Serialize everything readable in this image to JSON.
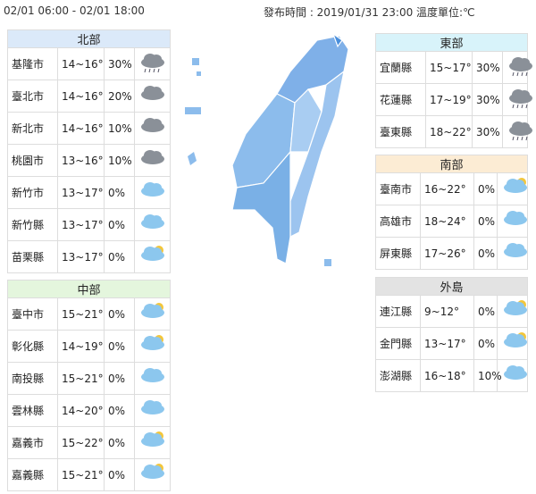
{
  "period": "02/01 06:00 - 02/01 18:00",
  "issued": "發布時間 : 2019/01/31 23:00 溫度單位:℃",
  "regions": [
    {
      "name": "北部",
      "color": "#dbe9f9",
      "rows": [
        {
          "city": "基隆市",
          "temp": "14~16°",
          "rain": "30%",
          "icon": "rain-icon"
        },
        {
          "city": "臺北市",
          "temp": "14~16°",
          "rain": "20%",
          "icon": "dark-cloud-icon"
        },
        {
          "city": "新北市",
          "temp": "14~16°",
          "rain": "10%",
          "icon": "dark-cloud-icon"
        },
        {
          "city": "桃園市",
          "temp": "13~16°",
          "rain": "10%",
          "icon": "dark-cloud-icon"
        },
        {
          "city": "新竹市",
          "temp": "13~17°",
          "rain": "0%",
          "icon": "cloud-icon"
        },
        {
          "city": "新竹縣",
          "temp": "13~17°",
          "rain": "0%",
          "icon": "cloud-icon"
        },
        {
          "city": "苗栗縣",
          "temp": "13~17°",
          "rain": "0%",
          "icon": "partly-sunny-icon"
        }
      ]
    },
    {
      "name": "中部",
      "color": "#e4f6dd",
      "rows": [
        {
          "city": "臺中市",
          "temp": "15~21°",
          "rain": "0%",
          "icon": "partly-sunny-icon"
        },
        {
          "city": "彰化縣",
          "temp": "14~19°",
          "rain": "0%",
          "icon": "partly-sunny-icon"
        },
        {
          "city": "南投縣",
          "temp": "15~21°",
          "rain": "0%",
          "icon": "cloud-icon"
        },
        {
          "city": "雲林縣",
          "temp": "14~20°",
          "rain": "0%",
          "icon": "cloud-icon"
        },
        {
          "city": "嘉義市",
          "temp": "15~22°",
          "rain": "0%",
          "icon": "partly-sunny-icon"
        },
        {
          "city": "嘉義縣",
          "temp": "15~21°",
          "rain": "0%",
          "icon": "partly-sunny-icon"
        }
      ]
    },
    {
      "name": "東部",
      "color": "#d8f3fa",
      "rows": [
        {
          "city": "宜蘭縣",
          "temp": "15~17°",
          "rain": "30%",
          "icon": "rain-icon"
        },
        {
          "city": "花蓮縣",
          "temp": "17~19°",
          "rain": "30%",
          "icon": "rain-icon"
        },
        {
          "city": "臺東縣",
          "temp": "18~22°",
          "rain": "30%",
          "icon": "rain-icon"
        }
      ]
    },
    {
      "name": "南部",
      "color": "#fcecd4",
      "rows": [
        {
          "city": "臺南市",
          "temp": "16~22°",
          "rain": "0%",
          "icon": "partly-sunny-icon"
        },
        {
          "city": "高雄市",
          "temp": "18~24°",
          "rain": "0%",
          "icon": "cloud-icon"
        },
        {
          "city": "屏東縣",
          "temp": "17~26°",
          "rain": "0%",
          "icon": "cloud-icon"
        }
      ]
    },
    {
      "name": "外島",
      "color": "#e3e3e3",
      "rows": [
        {
          "city": "連江縣",
          "temp": "9~12°",
          "rain": "0%",
          "icon": "partly-sunny-icon"
        },
        {
          "city": "金門縣",
          "temp": "13~17°",
          "rain": "0%",
          "icon": "partly-sunny-icon"
        },
        {
          "city": "澎湖縣",
          "temp": "16~18°",
          "rain": "10%",
          "icon": "cloud-icon"
        }
      ]
    }
  ]
}
